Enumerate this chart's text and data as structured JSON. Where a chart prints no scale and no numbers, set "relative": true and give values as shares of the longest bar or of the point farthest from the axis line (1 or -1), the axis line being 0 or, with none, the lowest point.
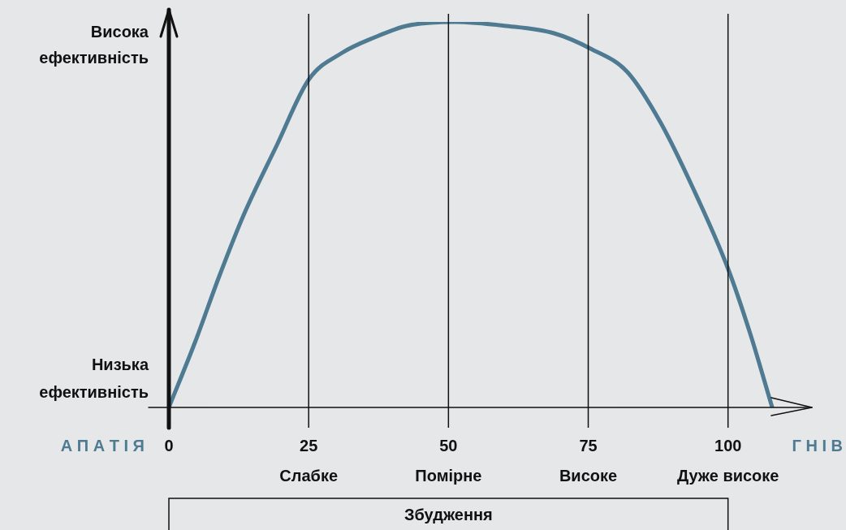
{
  "chart_data": {
    "type": "line",
    "relative": true,
    "xlabel": "Збудження",
    "color": "#4e7a92",
    "x": [
      0,
      4.7,
      9,
      13.4,
      19.3,
      25,
      31,
      36.8,
      42.6,
      51,
      60,
      69,
      75.5,
      82,
      87.9,
      93.7,
      100,
      104,
      107.9
    ],
    "values": [
      0,
      0.17,
      0.34,
      0.5,
      0.68,
      0.85,
      0.92,
      0.96,
      0.99,
      1,
      0.99,
      0.97,
      0.93,
      0.87,
      0.74,
      0.57,
      0.36,
      0.19,
      0
    ],
    "xlim": [
      0,
      115
    ],
    "xticks": [
      0,
      25,
      50,
      75,
      100
    ],
    "legend": false,
    "marker": "none",
    "line_style": "solid",
    "ref_lines": [
      {
        "axis": "x",
        "value": 25,
        "label": "Слабке",
        "color": "#111111"
      },
      {
        "axis": "x",
        "value": 50,
        "label": "Помірне",
        "color": "#111111"
      },
      {
        "axis": "x",
        "value": 75,
        "label": "Високе",
        "color": "#111111"
      },
      {
        "axis": "x",
        "value": 100,
        "label": "Дуже високе",
        "color": "#111111"
      }
    ],
    "annotations": [
      "Висока ефективність",
      "Низька ефективність",
      "А П А Т І Я",
      "Г Н І В"
    ]
  }
}
